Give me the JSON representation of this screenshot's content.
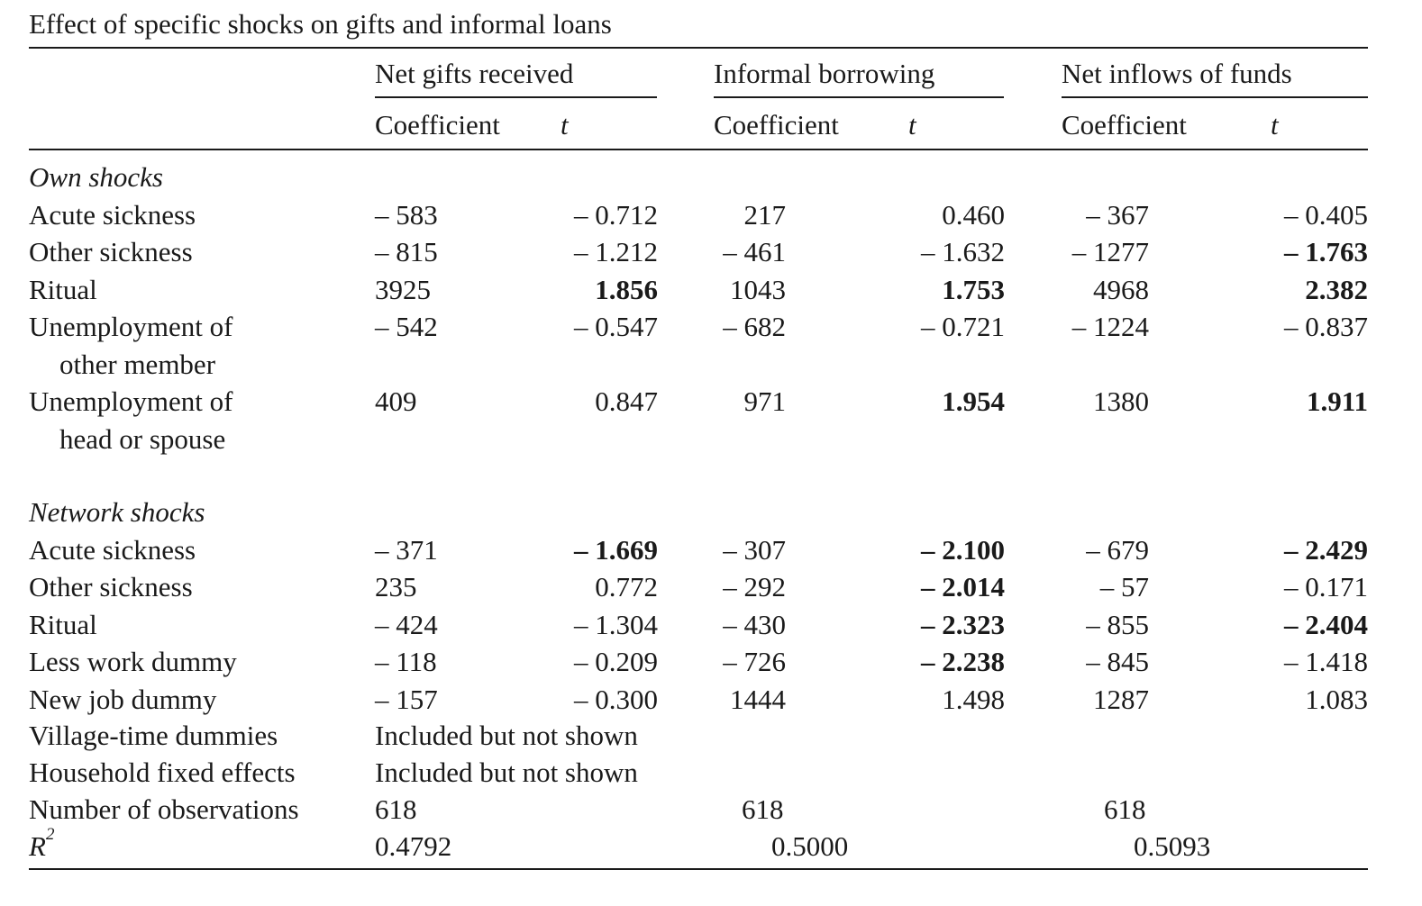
{
  "caption": "Effect of specific shocks on gifts and informal loans",
  "groups": [
    {
      "label": "Net gifts received"
    },
    {
      "label": "Informal borrowing"
    },
    {
      "label": "Net inflows of funds"
    }
  ],
  "subheaders": {
    "coef": "Coefficient",
    "t": "t"
  },
  "sections": [
    {
      "title": "Own shocks",
      "rows": [
        {
          "label": [
            "Acute sickness"
          ],
          "cells": [
            {
              "v": "– 583"
            },
            {
              "v": "– 0.712"
            },
            {
              "v": "217"
            },
            {
              "v": "0.460"
            },
            {
              "v": "– 367"
            },
            {
              "v": "– 0.405"
            }
          ]
        },
        {
          "label": [
            "Other sickness"
          ],
          "cells": [
            {
              "v": "– 815"
            },
            {
              "v": "– 1.212"
            },
            {
              "v": "– 461"
            },
            {
              "v": "– 1.632"
            },
            {
              "v": "– 1277"
            },
            {
              "v": "– 1.763",
              "b": true
            }
          ]
        },
        {
          "label": [
            "Ritual"
          ],
          "cells": [
            {
              "v": "3925"
            },
            {
              "v": "1.856",
              "b": true
            },
            {
              "v": "1043"
            },
            {
              "v": "1.753",
              "b": true
            },
            {
              "v": "4968"
            },
            {
              "v": "2.382",
              "b": true
            }
          ]
        },
        {
          "label": [
            "Unemployment of",
            "other member"
          ],
          "cells": [
            {
              "v": "– 542"
            },
            {
              "v": "– 0.547"
            },
            {
              "v": "– 682"
            },
            {
              "v": "– 0.721"
            },
            {
              "v": "– 1224"
            },
            {
              "v": "– 0.837"
            }
          ]
        },
        {
          "label": [
            "Unemployment of",
            "head or spouse"
          ],
          "cells": [
            {
              "v": "409"
            },
            {
              "v": "0.847"
            },
            {
              "v": "971"
            },
            {
              "v": "1.954",
              "b": true
            },
            {
              "v": "1380"
            },
            {
              "v": "1.911",
              "b": true
            }
          ]
        }
      ]
    },
    {
      "title": "Network shocks",
      "rows": [
        {
          "label": [
            "Acute sickness"
          ],
          "cells": [
            {
              "v": "– 371"
            },
            {
              "v": "– 1.669",
              "b": true
            },
            {
              "v": "– 307"
            },
            {
              "v": "– 2.100",
              "b": true
            },
            {
              "v": "– 679"
            },
            {
              "v": "– 2.429",
              "b": true
            }
          ]
        },
        {
          "label": [
            "Other sickness"
          ],
          "cells": [
            {
              "v": "235"
            },
            {
              "v": "0.772"
            },
            {
              "v": "– 292"
            },
            {
              "v": "– 2.014",
              "b": true
            },
            {
              "v": "– 57"
            },
            {
              "v": "– 0.171"
            }
          ]
        },
        {
          "label": [
            "Ritual"
          ],
          "cells": [
            {
              "v": "– 424"
            },
            {
              "v": "– 1.304"
            },
            {
              "v": "– 430"
            },
            {
              "v": "– 2.323",
              "b": true
            },
            {
              "v": "– 855"
            },
            {
              "v": "– 2.404",
              "b": true
            }
          ]
        },
        {
          "label": [
            "Less work dummy"
          ],
          "cells": [
            {
              "v": "– 118"
            },
            {
              "v": "– 0.209"
            },
            {
              "v": "– 726"
            },
            {
              "v": "– 2.238",
              "b": true
            },
            {
              "v": "– 845"
            },
            {
              "v": "– 1.418"
            }
          ]
        },
        {
          "label": [
            "New job dummy"
          ],
          "cells": [
            {
              "v": "– 157"
            },
            {
              "v": "– 0.300"
            },
            {
              "v": "1444"
            },
            {
              "v": "1.498"
            },
            {
              "v": "1287"
            },
            {
              "v": "1.083"
            }
          ]
        }
      ]
    }
  ],
  "footer": {
    "village": {
      "label": "Village-time dummies",
      "value": "Included but not shown"
    },
    "household": {
      "label": "Household fixed effects",
      "value": "Included but not shown"
    },
    "nobs": {
      "label": "Number of observations",
      "values": [
        "618",
        "618",
        "618"
      ]
    },
    "r2": {
      "label": "R",
      "sup": "2",
      "values": [
        "0.4792",
        "0.5000",
        "0.5093"
      ]
    }
  }
}
